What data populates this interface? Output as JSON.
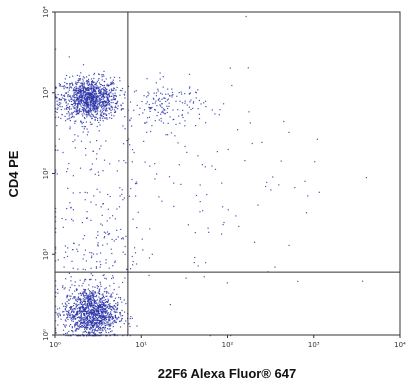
{
  "chart_data": {
    "type": "scatter",
    "title": "",
    "xlabel": "22F6 Alexa Fluor® 647",
    "ylabel": "CD4 PE",
    "x_scale": "log",
    "y_scale": "log",
    "xlim": [
      1,
      10000
    ],
    "ylim": [
      1,
      10000
    ],
    "x_ticks": [
      {
        "value": 1,
        "label": "10⁰"
      },
      {
        "value": 10,
        "label": "10¹"
      },
      {
        "value": 100,
        "label": "10²"
      },
      {
        "value": 1000,
        "label": "10³"
      },
      {
        "value": 10000,
        "label": "10⁴"
      }
    ],
    "y_ticks": [
      {
        "value": 1,
        "label": "10⁰"
      },
      {
        "value": 10,
        "label": "10¹"
      },
      {
        "value": 100,
        "label": "10²"
      },
      {
        "value": 1000,
        "label": "10³"
      },
      {
        "value": 10000,
        "label": "10⁴"
      }
    ],
    "quadrant_gates": {
      "x": 7,
      "y": 6
    },
    "point_color": "#2a33a8",
    "gate_color": "#333333",
    "populations": [
      {
        "x_center": 2.5,
        "y_center": 850,
        "x_spread_log": 0.17,
        "y_spread_log": 0.13,
        "count": 1100
      },
      {
        "x_center": 20,
        "y_center": 700,
        "x_spread_log": 0.22,
        "y_spread_log": 0.15,
        "count": 160
      },
      {
        "x_center": 2.6,
        "y_center": 1.9,
        "x_spread_log": 0.16,
        "y_spread_log": 0.16,
        "count": 1200
      },
      {
        "x_center": 3.0,
        "y_center": 12,
        "x_spread_log": 0.25,
        "y_spread_log": 0.28,
        "count": 120
      },
      {
        "x_center": 3.0,
        "y_center": 110,
        "x_spread_log": 0.28,
        "y_spread_log": 0.55,
        "count": 90
      },
      {
        "x_center": 30,
        "y_center": 60,
        "x_spread_log": 0.9,
        "y_spread_log": 0.8,
        "count": 140
      }
    ]
  }
}
